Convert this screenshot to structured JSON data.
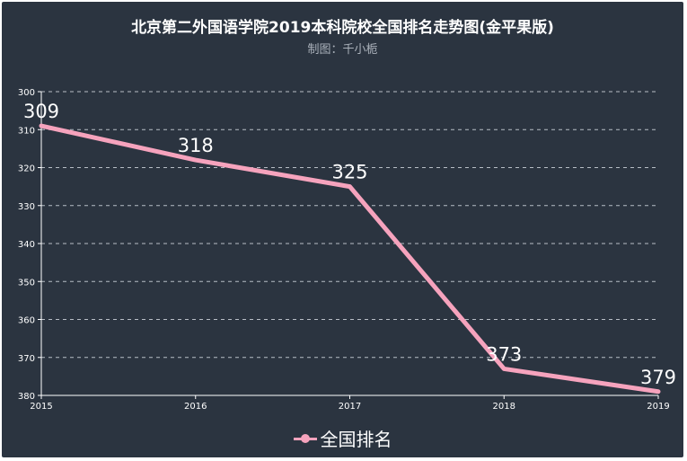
{
  "chart_data": {
    "type": "line",
    "title": "北京第二外国语学院2019本科院校全国排名走势图(金平果版)",
    "subtitle": "制图：千小栀",
    "x": [
      "2015",
      "2016",
      "2017",
      "2018",
      "2019"
    ],
    "series": [
      {
        "name": "全国排名",
        "values": [
          309,
          318,
          325,
          373,
          379
        ],
        "color": "#f6a3bd"
      }
    ],
    "ylim": [
      300,
      380
    ],
    "y_inverted": true,
    "y_ticks": [
      300,
      310,
      320,
      330,
      340,
      350,
      360,
      370,
      380
    ],
    "grid": true,
    "legend_position": "bottom-center",
    "colors": {
      "background": "#2b3440",
      "line": "#f6a3bd",
      "text": "#ffffff",
      "grid": "#b8bec6"
    }
  }
}
